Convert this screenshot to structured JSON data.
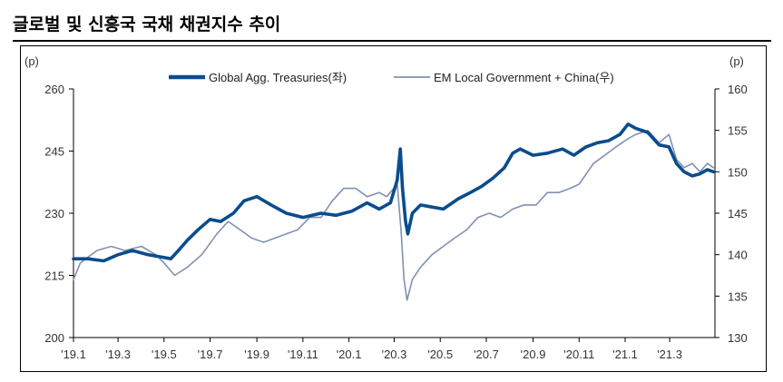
{
  "title": "글로벌 및 신흥국 국채 채권지수 추이",
  "colors": {
    "primary": "#0b4c8c",
    "secondary": "#7f91b4"
  },
  "chart_data": {
    "type": "line",
    "title": "글로벌 및 신흥국 국채 채권지수 추이",
    "y_left_unit": "(p)",
    "y_right_unit": "(p)",
    "y_left_ticks": [
      "200",
      "215",
      "230",
      "245",
      "260"
    ],
    "y_right_ticks": [
      "130",
      "135",
      "140",
      "145",
      "150",
      "155",
      "160"
    ],
    "y_left_range": [
      200,
      260
    ],
    "y_right_range": [
      130,
      160
    ],
    "x_range": [
      "2019-01-01",
      "2021-04-30"
    ],
    "x_ticks": [
      {
        "date": "2019-01-01",
        "label": "'19.1"
      },
      {
        "date": "2019-03-01",
        "label": "'19.3"
      },
      {
        "date": "2019-05-01",
        "label": "'19.5"
      },
      {
        "date": "2019-07-01",
        "label": "'19.7"
      },
      {
        "date": "2019-09-01",
        "label": "'19.9"
      },
      {
        "date": "2019-11-01",
        "label": "'19.11"
      },
      {
        "date": "2020-01-01",
        "label": "'20.1"
      },
      {
        "date": "2020-03-01",
        "label": "'20.3"
      },
      {
        "date": "2020-05-01",
        "label": "'20.5"
      },
      {
        "date": "2020-07-01",
        "label": "'20.7"
      },
      {
        "date": "2020-09-01",
        "label": "'20.9"
      },
      {
        "date": "2020-11-01",
        "label": "'20.11"
      },
      {
        "date": "2021-01-01",
        "label": "'21.1"
      },
      {
        "date": "2021-03-01",
        "label": "'21.3"
      }
    ],
    "grid": false,
    "legend_position": "top-center",
    "series": [
      {
        "name": "Global Agg. Treasuries(좌)",
        "axis": "left",
        "color": "#0b4c8c",
        "points": [
          [
            "2019-01-01",
            219
          ],
          [
            "2019-01-20",
            219
          ],
          [
            "2019-02-10",
            218.5
          ],
          [
            "2019-03-01",
            220
          ],
          [
            "2019-03-20",
            221
          ],
          [
            "2019-04-10",
            220
          ],
          [
            "2019-04-25",
            219.5
          ],
          [
            "2019-05-10",
            219
          ],
          [
            "2019-05-20",
            221
          ],
          [
            "2019-06-01",
            223.5
          ],
          [
            "2019-06-15",
            226
          ],
          [
            "2019-07-01",
            228.5
          ],
          [
            "2019-07-15",
            228
          ],
          [
            "2019-08-01",
            230
          ],
          [
            "2019-08-15",
            233
          ],
          [
            "2019-09-01",
            234
          ],
          [
            "2019-09-20",
            232
          ],
          [
            "2019-10-10",
            230
          ],
          [
            "2019-11-01",
            229
          ],
          [
            "2019-11-25",
            230
          ],
          [
            "2019-12-15",
            229.5
          ],
          [
            "2020-01-05",
            230.5
          ],
          [
            "2020-01-25",
            232.5
          ],
          [
            "2020-02-10",
            231
          ],
          [
            "2020-02-25",
            232.5
          ],
          [
            "2020-03-05",
            238
          ],
          [
            "2020-03-09",
            245.5
          ],
          [
            "2020-03-12",
            236
          ],
          [
            "2020-03-16",
            228
          ],
          [
            "2020-03-19",
            225
          ],
          [
            "2020-03-25",
            230
          ],
          [
            "2020-04-05",
            232
          ],
          [
            "2020-04-20",
            231.5
          ],
          [
            "2020-05-05",
            231
          ],
          [
            "2020-05-25",
            233.5
          ],
          [
            "2020-06-10",
            235
          ],
          [
            "2020-06-25",
            236.5
          ],
          [
            "2020-07-10",
            238.5
          ],
          [
            "2020-07-25",
            241
          ],
          [
            "2020-08-05",
            244.5
          ],
          [
            "2020-08-15",
            245.5
          ],
          [
            "2020-09-01",
            244
          ],
          [
            "2020-09-20",
            244.5
          ],
          [
            "2020-10-10",
            245.5
          ],
          [
            "2020-10-25",
            244
          ],
          [
            "2020-11-10",
            246
          ],
          [
            "2020-11-25",
            247
          ],
          [
            "2020-12-10",
            247.5
          ],
          [
            "2020-12-25",
            249
          ],
          [
            "2021-01-05",
            251.5
          ],
          [
            "2021-01-15",
            250.5
          ],
          [
            "2021-01-31",
            249.5
          ],
          [
            "2021-02-15",
            246.5
          ],
          [
            "2021-02-28",
            246
          ],
          [
            "2021-03-10",
            242
          ],
          [
            "2021-03-20",
            240
          ],
          [
            "2021-03-31",
            239
          ],
          [
            "2021-04-10",
            239.5
          ],
          [
            "2021-04-20",
            240.5
          ],
          [
            "2021-04-28",
            240
          ]
        ]
      },
      {
        "name": "EM Local Government + China(우)",
        "axis": "right",
        "color": "#7f91b4",
        "points": [
          [
            "2019-01-01",
            137
          ],
          [
            "2019-01-10",
            139
          ],
          [
            "2019-02-01",
            140.5
          ],
          [
            "2019-02-20",
            141
          ],
          [
            "2019-03-10",
            140.5
          ],
          [
            "2019-04-01",
            141
          ],
          [
            "2019-04-20",
            140
          ],
          [
            "2019-05-01",
            139
          ],
          [
            "2019-05-15",
            137.5
          ],
          [
            "2019-06-01",
            138.5
          ],
          [
            "2019-06-20",
            140
          ],
          [
            "2019-07-10",
            142.5
          ],
          [
            "2019-07-25",
            144
          ],
          [
            "2019-08-10",
            143
          ],
          [
            "2019-08-25",
            142
          ],
          [
            "2019-09-10",
            141.5
          ],
          [
            "2019-09-25",
            142
          ],
          [
            "2019-10-10",
            142.5
          ],
          [
            "2019-10-25",
            143
          ],
          [
            "2019-11-10",
            144.5
          ],
          [
            "2019-11-25",
            144.5
          ],
          [
            "2019-12-10",
            146.5
          ],
          [
            "2019-12-25",
            148
          ],
          [
            "2020-01-10",
            148
          ],
          [
            "2020-01-25",
            147
          ],
          [
            "2020-02-10",
            147.5
          ],
          [
            "2020-02-20",
            147
          ],
          [
            "2020-03-05",
            148.5
          ],
          [
            "2020-03-10",
            143
          ],
          [
            "2020-03-14",
            137
          ],
          [
            "2020-03-18",
            134.5
          ],
          [
            "2020-03-25",
            137
          ],
          [
            "2020-04-05",
            138.5
          ],
          [
            "2020-04-20",
            140
          ],
          [
            "2020-05-05",
            141
          ],
          [
            "2020-05-20",
            142
          ],
          [
            "2020-06-05",
            143
          ],
          [
            "2020-06-20",
            144.5
          ],
          [
            "2020-07-05",
            145
          ],
          [
            "2020-07-20",
            144.5
          ],
          [
            "2020-08-05",
            145.5
          ],
          [
            "2020-08-20",
            146
          ],
          [
            "2020-09-05",
            146
          ],
          [
            "2020-09-20",
            147.5
          ],
          [
            "2020-10-05",
            147.5
          ],
          [
            "2020-10-20",
            148
          ],
          [
            "2020-11-01",
            148.5
          ],
          [
            "2020-11-20",
            151
          ],
          [
            "2020-12-05",
            152
          ],
          [
            "2020-12-20",
            153
          ],
          [
            "2021-01-05",
            154
          ],
          [
            "2021-01-15",
            154.5
          ],
          [
            "2021-01-31",
            155
          ],
          [
            "2021-02-15",
            153.5
          ],
          [
            "2021-02-28",
            154.5
          ],
          [
            "2021-03-10",
            151.5
          ],
          [
            "2021-03-20",
            150.5
          ],
          [
            "2021-03-31",
            151
          ],
          [
            "2021-04-10",
            150
          ],
          [
            "2021-04-20",
            151
          ],
          [
            "2021-04-28",
            150.5
          ]
        ]
      }
    ]
  }
}
